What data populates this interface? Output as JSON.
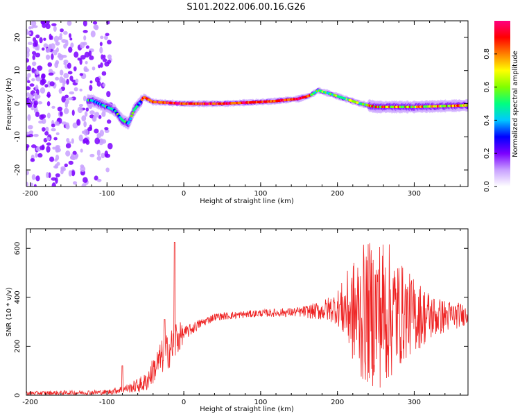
{
  "title": "S101.2022.006.00.16.G26",
  "chart_data": [
    {
      "type": "heatmap",
      "xlabel": "Height of straight line (km)",
      "ylabel": "Frequency (Hz)",
      "xlim": [
        -205,
        370
      ],
      "ylim": [
        -25,
        25
      ],
      "x_ticks": [
        -200,
        -100,
        0,
        100,
        200,
        300
      ],
      "y_ticks": [
        -20,
        -10,
        0,
        10,
        20
      ],
      "colorbar": {
        "label": "Normalized spectral amplitude",
        "range": [
          0.0,
          1.0
        ],
        "ticks": [
          "0.0",
          "0.2",
          "0.4",
          "0.6",
          "0.8"
        ],
        "colormap": [
          "#ffffff",
          "#c8a0ff",
          "#7b00ff",
          "#0000ff",
          "#00c8ff",
          "#00ff80",
          "#80ff00",
          "#ffff00",
          "#ff8000",
          "#ff0000",
          "#ff0080"
        ]
      },
      "ridge": {
        "x": [
          -120,
          -110,
          -100,
          -90,
          -80,
          -72,
          -65,
          -58,
          -52,
          -40,
          0,
          50,
          100,
          120,
          150,
          165,
          175,
          190,
          210,
          230,
          250,
          300,
          370
        ],
        "y": [
          1,
          0,
          -1,
          -2,
          -5,
          -6,
          -2,
          0,
          2,
          0.5,
          0,
          0,
          0.5,
          0.8,
          1.5,
          2.5,
          4,
          3,
          1.5,
          0,
          -1,
          -1,
          -0.5
        ]
      },
      "noise_region_x": [
        -205,
        -95
      ]
    },
    {
      "type": "line",
      "xlabel": "Height of straight line (km)",
      "ylabel": "SNR (10 * v/v)",
      "xlim": [
        -205,
        370
      ],
      "ylim": [
        0,
        680
      ],
      "x_ticks": [
        -200,
        -100,
        0,
        100,
        200,
        300
      ],
      "y_ticks": [
        0,
        200,
        400,
        600
      ],
      "line_color": "#ee2222",
      "envelope": {
        "x": [
          -205,
          -100,
          -70,
          -50,
          -30,
          -15,
          -10,
          0,
          20,
          40,
          100,
          150,
          180,
          200,
          230,
          260,
          290,
          330,
          370
        ],
        "mean": [
          8,
          12,
          30,
          50,
          150,
          200,
          230,
          250,
          290,
          320,
          335,
          340,
          345,
          360,
          330,
          340,
          330,
          320,
          330
        ],
        "amplitude": [
          8,
          10,
          20,
          40,
          70,
          80,
          90,
          30,
          20,
          15,
          15,
          20,
          40,
          70,
          280,
          320,
          180,
          80,
          40
        ]
      },
      "spikes": [
        {
          "x": -80,
          "y": 120
        },
        {
          "x": -25,
          "y": 310
        },
        {
          "x": -12,
          "y": 625
        }
      ]
    }
  ]
}
